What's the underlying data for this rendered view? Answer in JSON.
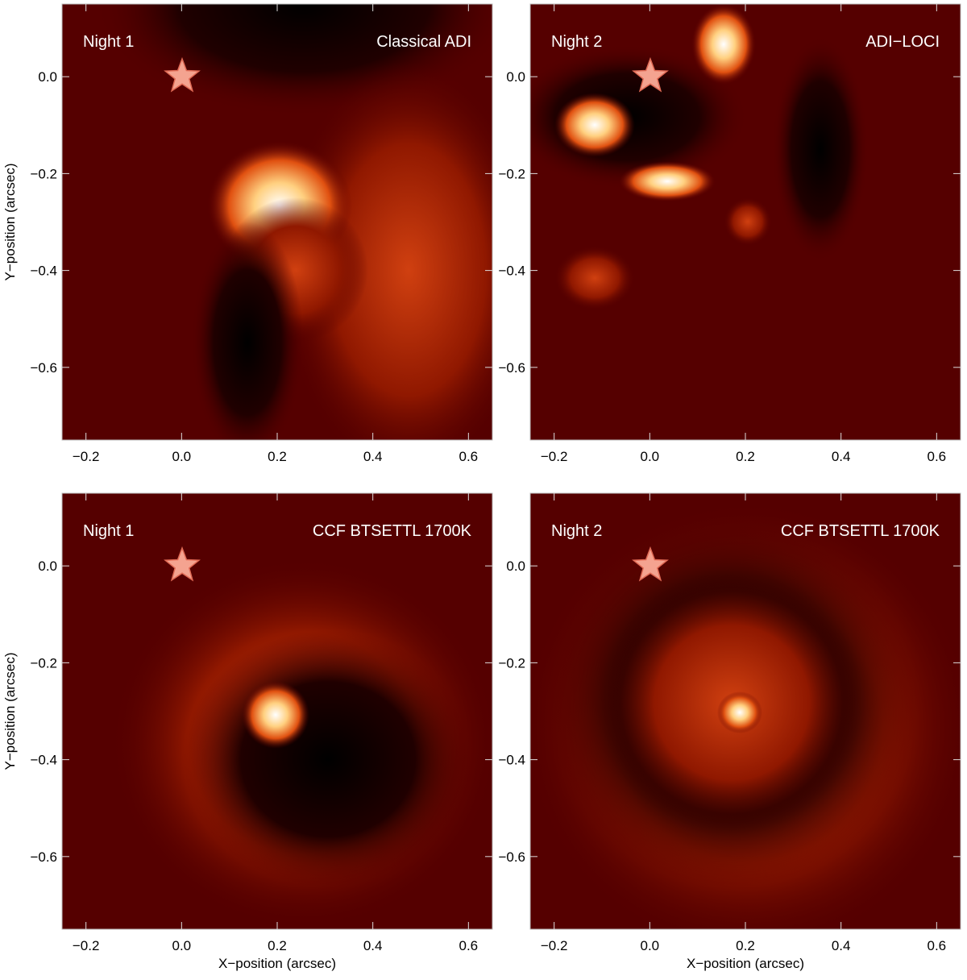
{
  "chart_data": [
    {
      "type": "image",
      "label_left": "Night 1",
      "label_right": "Classical ADI",
      "ylabel": "Y−position (arcsec)",
      "xlim": [
        -0.25,
        0.65
      ],
      "ylim": [
        -0.75,
        0.15
      ],
      "xticks": [
        {
          "value": -0.2,
          "label": "−0.2"
        },
        {
          "value": 0.0,
          "label": "0.0"
        },
        {
          "value": 0.2,
          "label": "0.2"
        },
        {
          "value": 0.4,
          "label": "0.4"
        },
        {
          "value": 0.6,
          "label": "0.6"
        }
      ],
      "yticks": [
        {
          "value": 0.0,
          "label": "0.0"
        },
        {
          "value": -0.2,
          "label": "−0.2"
        },
        {
          "value": -0.4,
          "label": "−0.4"
        },
        {
          "value": -0.6,
          "label": "−0.6"
        }
      ]
    },
    {
      "type": "image",
      "label_left": "Night 2",
      "label_right": "ADI−LOCI",
      "xlim": [
        -0.25,
        0.65
      ],
      "ylim": [
        -0.75,
        0.15
      ],
      "xticks": [
        {
          "value": -0.2,
          "label": "−0.2"
        },
        {
          "value": 0.0,
          "label": "0.0"
        },
        {
          "value": 0.2,
          "label": "0.2"
        },
        {
          "value": 0.4,
          "label": "0.4"
        },
        {
          "value": 0.6,
          "label": "0.6"
        }
      ],
      "yticks": [
        {
          "value": 0.0,
          "label": "0.0"
        },
        {
          "value": -0.2,
          "label": "−0.2"
        },
        {
          "value": -0.4,
          "label": "−0.4"
        },
        {
          "value": -0.6,
          "label": "−0.6"
        }
      ]
    },
    {
      "type": "image",
      "label_left": "Night 1",
      "label_right": "CCF BTSETTL 1700K",
      "ylabel": "Y−position (arcsec)",
      "xlabel": "X−position (arcsec)",
      "xlim": [
        -0.25,
        0.65
      ],
      "ylim": [
        -0.75,
        0.15
      ],
      "xticks": [
        {
          "value": -0.2,
          "label": "−0.2"
        },
        {
          "value": 0.0,
          "label": "0.0"
        },
        {
          "value": 0.2,
          "label": "0.2"
        },
        {
          "value": 0.4,
          "label": "0.4"
        },
        {
          "value": 0.6,
          "label": "0.6"
        }
      ],
      "yticks": [
        {
          "value": 0.0,
          "label": "0.0"
        },
        {
          "value": -0.2,
          "label": "−0.2"
        },
        {
          "value": -0.4,
          "label": "−0.4"
        },
        {
          "value": -0.6,
          "label": "−0.6"
        }
      ]
    },
    {
      "type": "image",
      "label_left": "Night 2",
      "label_right": "CCF BTSETTL 1700K",
      "xlabel": "X−position (arcsec)",
      "xlim": [
        -0.25,
        0.65
      ],
      "ylim": [
        -0.75,
        0.15
      ],
      "xticks": [
        {
          "value": -0.2,
          "label": "−0.2"
        },
        {
          "value": 0.0,
          "label": "0.0"
        },
        {
          "value": 0.2,
          "label": "0.2"
        },
        {
          "value": 0.4,
          "label": "0.4"
        },
        {
          "value": 0.6,
          "label": "0.6"
        }
      ],
      "yticks": [
        {
          "value": 0.0,
          "label": "0.0"
        },
        {
          "value": -0.2,
          "label": "−0.2"
        },
        {
          "value": -0.4,
          "label": "−0.4"
        },
        {
          "value": -0.6,
          "label": "−0.6"
        }
      ]
    }
  ]
}
